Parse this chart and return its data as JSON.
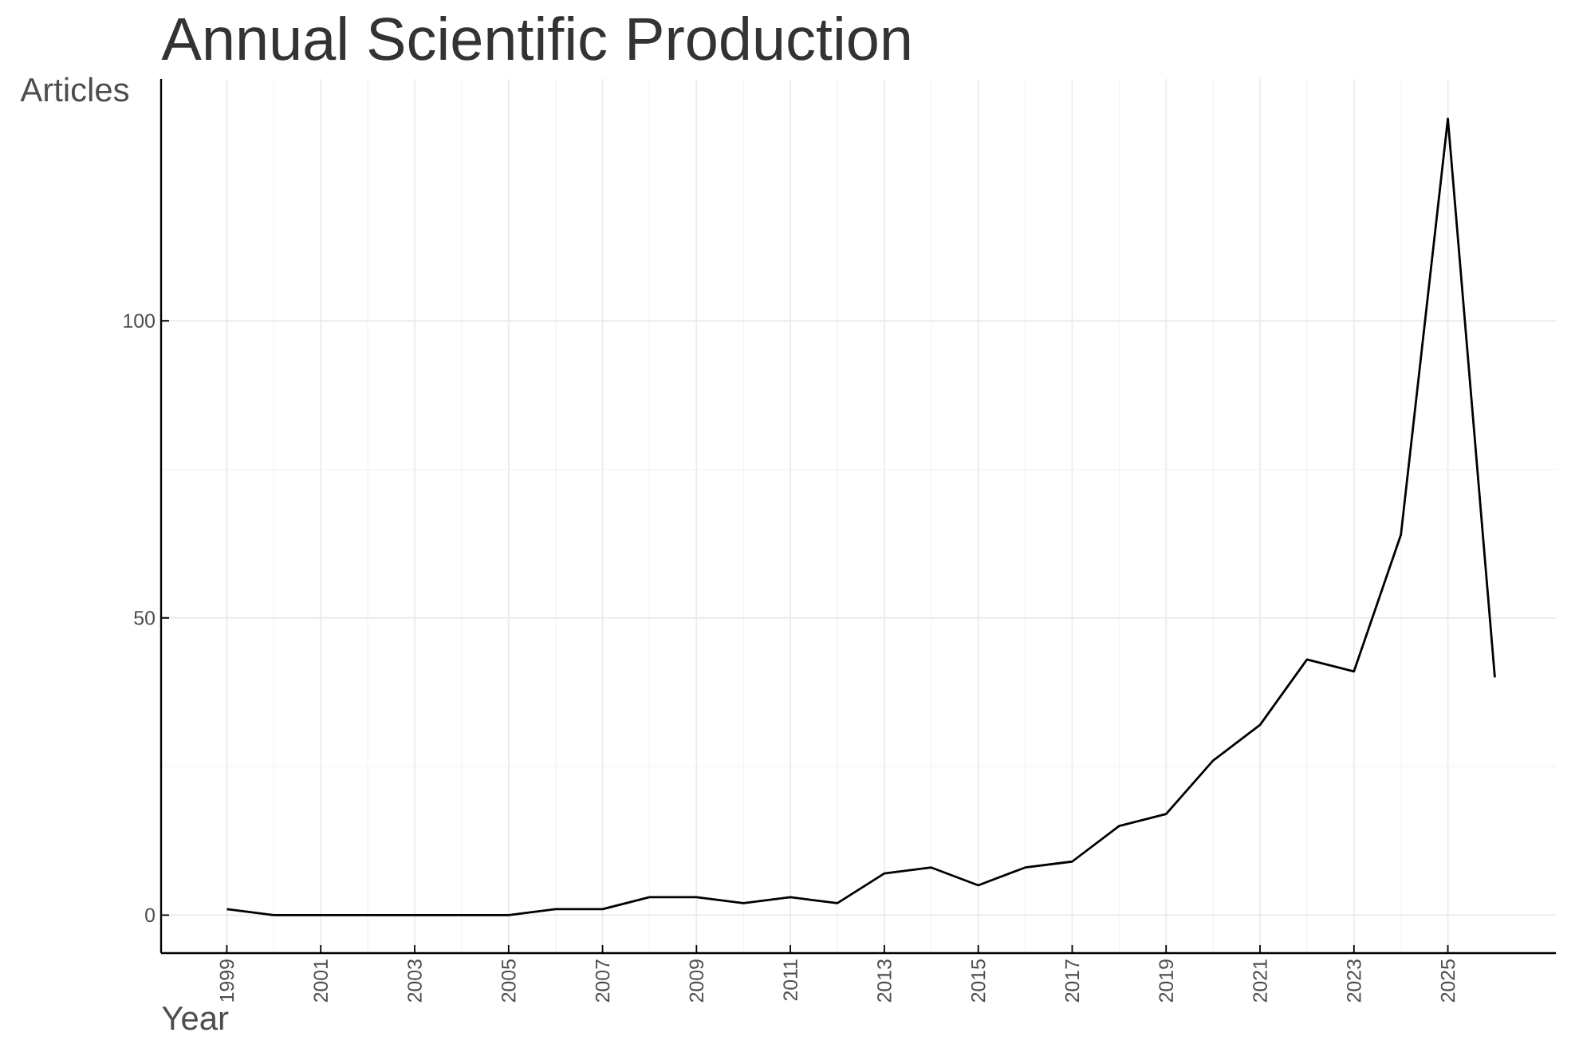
{
  "chart_data": {
    "type": "line",
    "title": "Annual Scientific Production",
    "xlabel": "Year",
    "ylabel": "Articles",
    "x": [
      1999,
      2000,
      2001,
      2002,
      2003,
      2004,
      2005,
      2006,
      2007,
      2008,
      2009,
      2010,
      2011,
      2012,
      2013,
      2014,
      2015,
      2016,
      2017,
      2018,
      2019,
      2020,
      2021,
      2022,
      2023,
      2024,
      2025,
      2026
    ],
    "values": [
      1,
      0,
      0,
      0,
      0,
      0,
      0,
      1,
      1,
      3,
      3,
      2,
      3,
      2,
      7,
      8,
      5,
      8,
      9,
      15,
      17,
      26,
      32,
      43,
      41,
      64,
      134,
      40
    ],
    "color": "#000000",
    "xlim": [
      1997.6,
      2027.3
    ],
    "ylim": [
      -6.4,
      140.7
    ],
    "xticks": [
      1999,
      2001,
      2003,
      2005,
      2007,
      2009,
      2011,
      2013,
      2015,
      2017,
      2019,
      2021,
      2023,
      2025
    ],
    "yticks": [
      0,
      50,
      100
    ],
    "grid": true,
    "marker": "none",
    "line_style": "solid"
  }
}
